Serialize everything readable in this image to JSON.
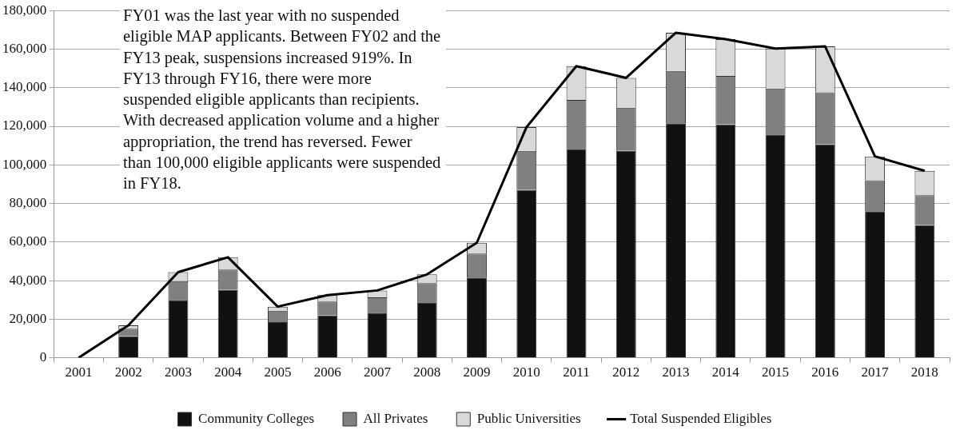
{
  "chart_data": {
    "type": "bar",
    "stacked": true,
    "categories": [
      "2001",
      "2002",
      "2003",
      "2004",
      "2005",
      "2006",
      "2007",
      "2008",
      "2009",
      "2010",
      "2011",
      "2012",
      "2013",
      "2014",
      "2015",
      "2016",
      "2017",
      "2018"
    ],
    "series": [
      {
        "name": "Community Colleges",
        "color": "#111111",
        "values": [
          0,
          11200,
          30000,
          35200,
          18500,
          21900,
          23300,
          28700,
          41600,
          87100,
          108300,
          107300,
          121600,
          121000,
          115800,
          110600,
          76000,
          68800
        ]
      },
      {
        "name": "All Privates",
        "color": "#808080",
        "values": [
          0,
          3900,
          9700,
          10500,
          5900,
          7200,
          8000,
          10000,
          12400,
          20200,
          25400,
          22300,
          27100,
          25100,
          23800,
          27000,
          16000,
          15500
        ]
      },
      {
        "name": "Public Universities",
        "color": "#d9d9d9",
        "values": [
          0,
          1700,
          4700,
          6400,
          2100,
          3400,
          3600,
          4500,
          5600,
          12300,
          17500,
          15500,
          19800,
          19100,
          20700,
          23800,
          12400,
          12600
        ]
      },
      {
        "name": "Total Suspended Eligibles",
        "type": "line",
        "color": "#000000",
        "values": [
          0,
          16800,
          44400,
          52100,
          26500,
          32500,
          34900,
          43200,
          59600,
          119600,
          151200,
          145100,
          168500,
          165200,
          160300,
          161400,
          104400,
          96900
        ]
      }
    ],
    "ylim": [
      0,
      180000
    ],
    "yticks": [
      0,
      {
        "value": 20000,
        "label": "20,000"
      },
      {
        "value": 40000,
        "label": "40,000"
      },
      {
        "value": 60000,
        "label": "60,000"
      },
      {
        "value": 80000,
        "label": "80,000"
      },
      {
        "value": 100000,
        "label": "100,000"
      },
      {
        "value": 120000,
        "label": "120,000"
      },
      {
        "value": 140000,
        "label": "140,000"
      },
      {
        "value": 160000,
        "label": "160,000"
      },
      {
        "value": 180000,
        "label": "180,000"
      }
    ],
    "grid": "y",
    "legend": "bottom",
    "marker": "none",
    "line_style": "solid",
    "annotations": [
      "FY01 was the last year with no suspended eligible MAP applicants. Between FY02 and the FY13 peak, suspensions increased 919%. In FY13 through FY16, there were more suspended eligible applicants than recipients. With decreased application volume and a higher appropriation, the trend has reversed. Fewer than 100,000 eligible applicants were suspended in FY18."
    ]
  }
}
